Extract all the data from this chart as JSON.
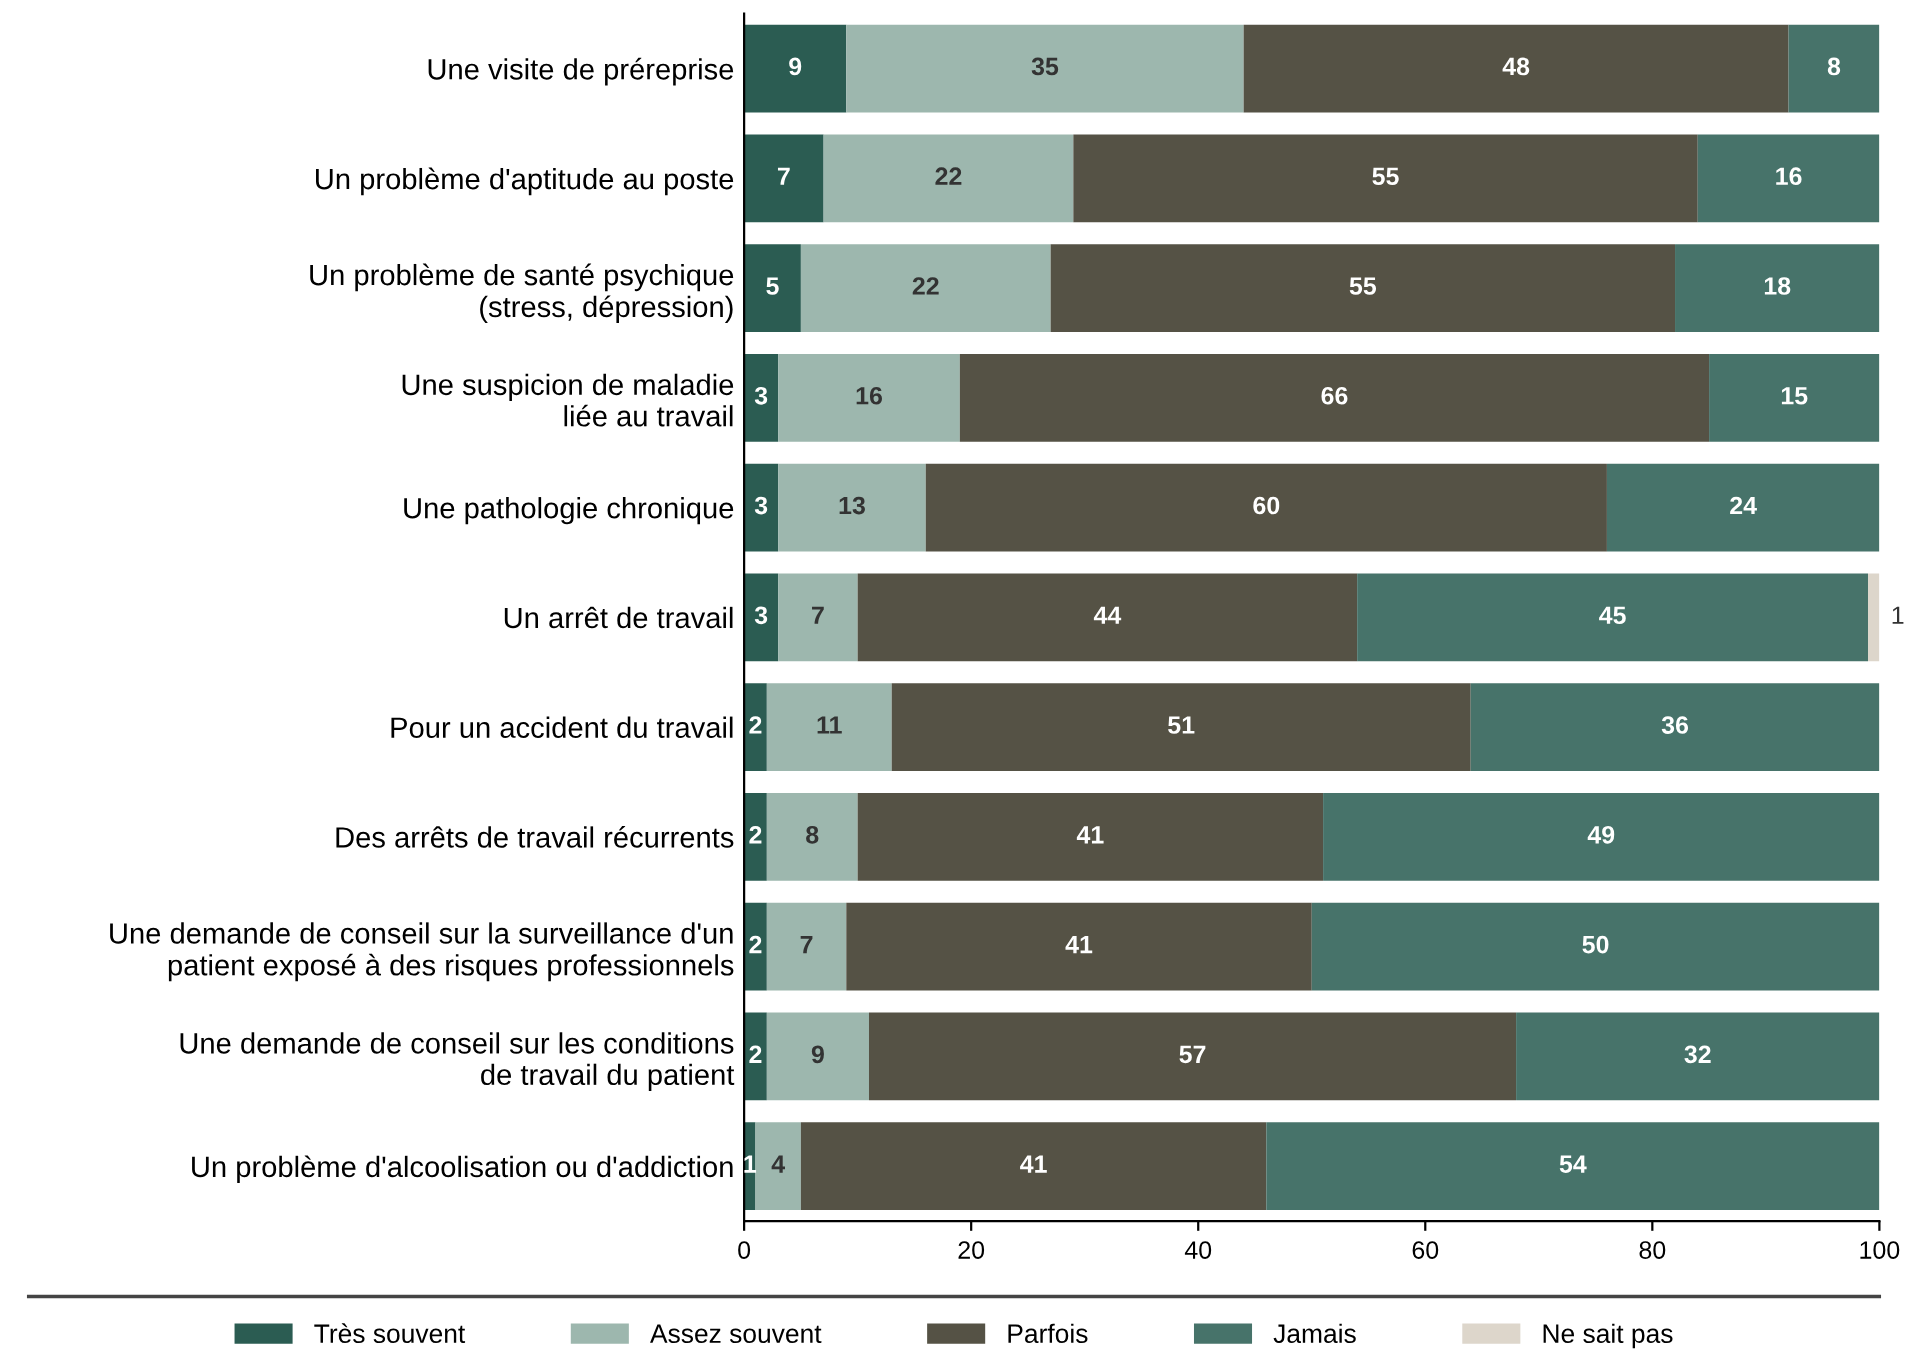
{
  "chart_data": {
    "type": "bar",
    "orientation": "horizontal",
    "stacked": true,
    "data_labels": true,
    "categories": [
      "Une visite de préreprise",
      "Un problème d'aptitude au poste",
      "Un problème de santé psychique\n(stress, dépression)",
      "Une suspicion de maladie\nliée au travail",
      "Une pathologie chronique",
      "Un arrêt de travail",
      "Pour un accident du travail",
      "Des arrêts de travail récurrents",
      "Une demande de conseil sur la surveillance d'un\npatient exposé à des risques professionnels",
      "Une demande de conseil sur les conditions\nde travail du patient",
      "Un problème d'alcoolisation ou d'addiction"
    ],
    "series": [
      {
        "name": "Très souvent",
        "color": "#2b5c52",
        "values": [
          9,
          7,
          5,
          3,
          3,
          3,
          2,
          2,
          2,
          2,
          1
        ]
      },
      {
        "name": "Assez souvent",
        "color": "#9db7ae",
        "values": [
          35,
          22,
          22,
          16,
          13,
          7,
          11,
          8,
          7,
          9,
          4
        ]
      },
      {
        "name": "Parfois",
        "color": "#555245",
        "values": [
          48,
          55,
          55,
          66,
          60,
          44,
          51,
          41,
          41,
          57,
          41
        ]
      },
      {
        "name": "Jamais",
        "color": "#47736a",
        "values": [
          8,
          16,
          18,
          15,
          24,
          45,
          36,
          49,
          50,
          32,
          54
        ]
      },
      {
        "name": "Ne sait pas",
        "color": "#ddd6cb",
        "values": [
          null,
          null,
          null,
          null,
          null,
          1,
          null,
          null,
          null,
          null,
          null
        ]
      }
    ],
    "xlim": [
      0,
      100
    ],
    "xticks": [
      0,
      20,
      40,
      60,
      80,
      100
    ],
    "grid": false,
    "legend": "bottom"
  }
}
